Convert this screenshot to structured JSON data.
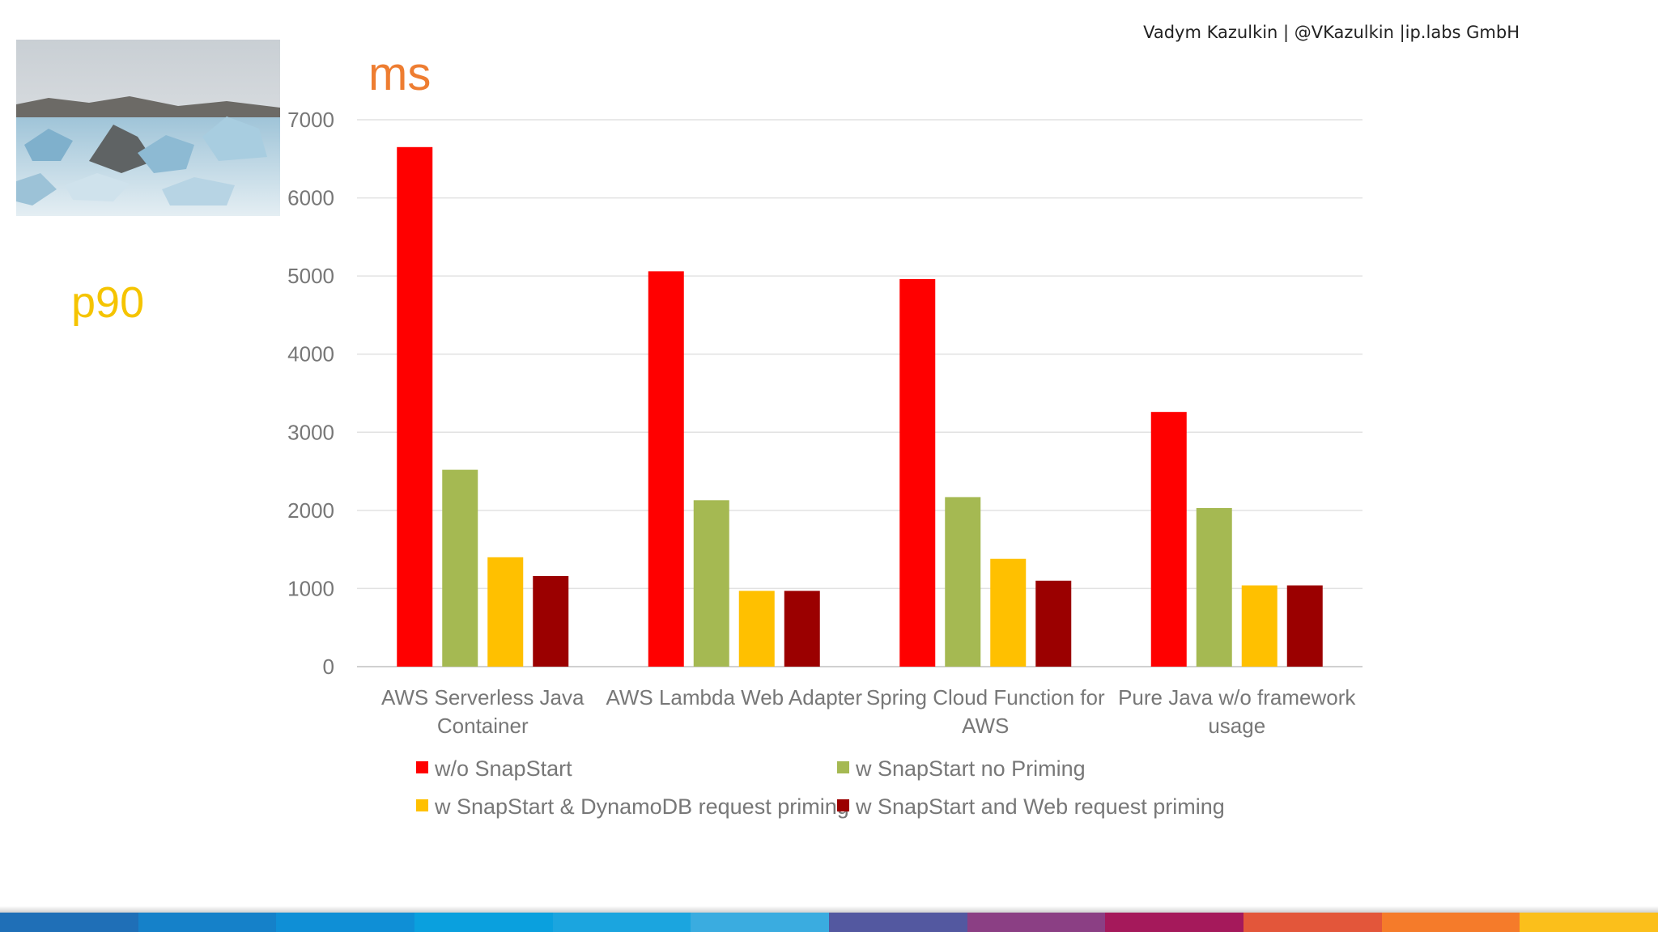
{
  "header": {
    "author": "Vadym Kazulkin | @VKazulkin |ip.labs GmbH"
  },
  "slide": {
    "metric_label": "p90"
  },
  "chart_data": {
    "type": "bar",
    "title": "",
    "ylabel": "ms",
    "xlabel": "",
    "ylim": [
      0,
      7000
    ],
    "yticks": [
      0,
      1000,
      2000,
      3000,
      4000,
      5000,
      6000,
      7000
    ],
    "grid": true,
    "legend_position": "bottom",
    "categories": [
      [
        "AWS Serverless Java",
        "Container"
      ],
      [
        "AWS Lambda Web Adapter"
      ],
      [
        "Spring Cloud Function for",
        "AWS"
      ],
      [
        "Pure Java w/o framework",
        "usage"
      ]
    ],
    "series": [
      {
        "name": "w/o SnapStart",
        "color": "#ff0000",
        "values": [
          6650,
          5060,
          4960,
          3260
        ]
      },
      {
        "name": "w SnapStart no Priming",
        "color": "#a5b952",
        "values": [
          2520,
          2130,
          2170,
          2030
        ]
      },
      {
        "name": "w SnapStart & DynamoDB request priming",
        "color": "#ffc000",
        "values": [
          1400,
          970,
          1380,
          1040
        ]
      },
      {
        "name": "w SnapStart and Web request priming",
        "color": "#9b0000",
        "values": [
          1160,
          970,
          1100,
          1040
        ]
      }
    ]
  },
  "footer": {
    "stripe_colors": [
      "#1f6fb7",
      "#1581c9",
      "#0f8fd6",
      "#0aa0de",
      "#1ba5df",
      "#3aace0",
      "#5358a0",
      "#8b3f84",
      "#a5195b",
      "#e3563a",
      "#f57b2a",
      "#fbbf1b"
    ]
  }
}
